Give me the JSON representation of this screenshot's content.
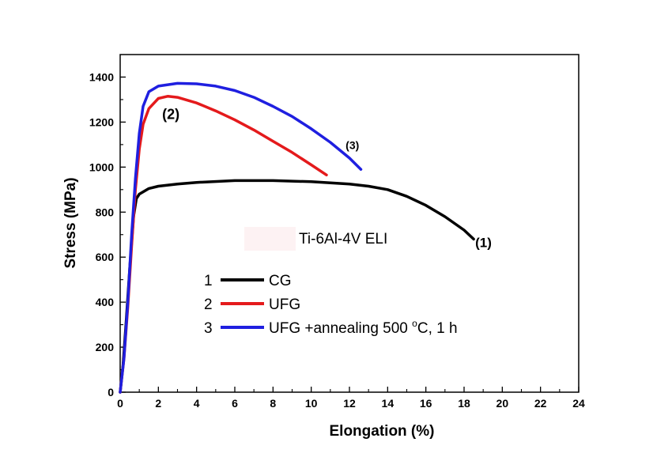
{
  "chart_data": {
    "type": "line",
    "title": "",
    "xlabel": "Elongation (%)",
    "ylabel": "Stress (MPa)",
    "xlim": [
      0,
      24
    ],
    "ylim": [
      0,
      1500
    ],
    "x_ticks": [
      0,
      2,
      4,
      6,
      8,
      10,
      12,
      14,
      16,
      18,
      20,
      22,
      24
    ],
    "y_ticks": [
      0,
      200,
      400,
      600,
      800,
      1000,
      1200,
      1400
    ],
    "x_tick_labels": [
      "0",
      "2",
      "4",
      "6",
      "8",
      "10",
      "12",
      "14",
      "16",
      "18",
      "20",
      "22",
      "24"
    ],
    "y_tick_labels": [
      "0",
      "200",
      "400",
      "600",
      "800",
      "1000",
      "1200",
      "1400"
    ],
    "grid": false,
    "legend_position": "center-left",
    "annotation": "Ti-6Al-4V ELI",
    "series": [
      {
        "name": "CG",
        "number": "1",
        "color": "#000000",
        "curve_label": "(1)",
        "x": [
          0,
          0.15,
          0.3,
          0.5,
          0.7,
          0.85,
          1.0,
          1.5,
          2,
          3,
          4,
          6,
          8,
          10,
          11,
          12,
          13,
          14,
          15,
          16,
          17,
          18,
          18.5
        ],
        "y": [
          0,
          120,
          300,
          550,
          780,
          860,
          880,
          905,
          915,
          925,
          932,
          940,
          940,
          935,
          930,
          925,
          915,
          900,
          870,
          830,
          780,
          720,
          680
        ]
      },
      {
        "name": "UFG",
        "number": "2",
        "color": "#e41a1c",
        "curve_label": "(2)",
        "x": [
          0,
          0.2,
          0.4,
          0.6,
          0.8,
          1.0,
          1.2,
          1.5,
          2.0,
          2.5,
          3,
          4,
          5,
          6,
          7,
          8,
          9,
          10,
          10.8
        ],
        "y": [
          0,
          150,
          380,
          650,
          900,
          1080,
          1190,
          1260,
          1305,
          1315,
          1310,
          1285,
          1250,
          1210,
          1165,
          1115,
          1065,
          1010,
          965
        ]
      },
      {
        "name": "UFG +annealing 500 °C, 1 h",
        "number": "3",
        "color": "#1f1fe0",
        "curve_label": "(3)",
        "x": [
          0,
          0.2,
          0.4,
          0.6,
          0.8,
          1.0,
          1.2,
          1.5,
          2,
          3,
          4,
          5,
          6,
          7,
          8,
          9,
          10,
          11,
          12,
          12.6
        ],
        "y": [
          0,
          150,
          400,
          700,
          950,
          1150,
          1270,
          1335,
          1360,
          1372,
          1370,
          1360,
          1340,
          1310,
          1270,
          1225,
          1170,
          1110,
          1040,
          990
        ]
      }
    ]
  }
}
